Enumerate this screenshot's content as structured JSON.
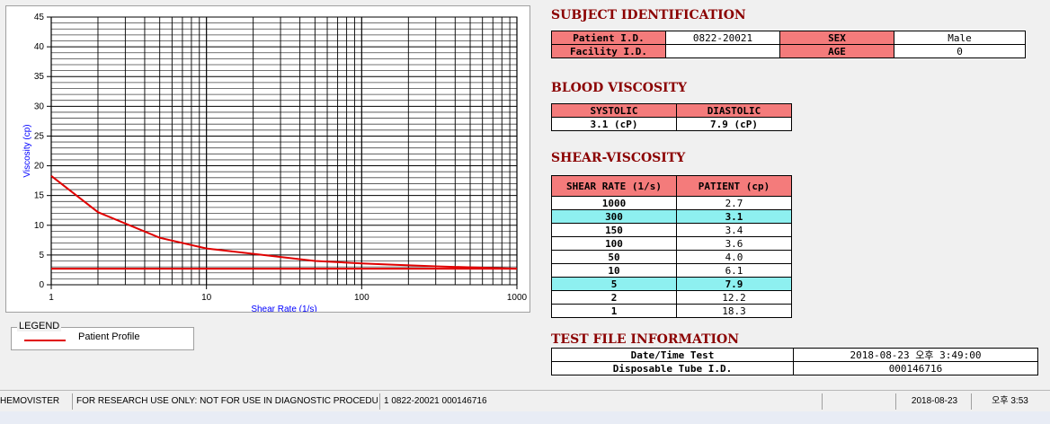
{
  "chart_data": {
    "type": "line",
    "xlabel": "Shear Rate (1/s)",
    "ylabel": "Viscosity (cp)",
    "xscale": "log",
    "xlim": [
      1,
      1000
    ],
    "ylim": [
      0,
      45
    ],
    "x_tick_labels": [
      "1",
      "10",
      "100",
      "1000"
    ],
    "y_tick_labels": [
      "0",
      "5",
      "10",
      "15",
      "20",
      "25",
      "30",
      "35",
      "40",
      "45"
    ],
    "grid": true,
    "series": [
      {
        "name": "Patient Profile",
        "color": "#e00000",
        "x": [
          1,
          2,
          5,
          10,
          50,
          100,
          150,
          300,
          1000
        ],
        "y": [
          18.3,
          12.2,
          7.9,
          6.1,
          4.0,
          3.6,
          3.4,
          3.1,
          2.7
        ]
      },
      {
        "color": "#e00000",
        "x": [
          1,
          1000
        ],
        "y": [
          2.7,
          2.7
        ]
      }
    ]
  },
  "legend": {
    "title": "LEGEND",
    "items": [
      "Patient Profile"
    ]
  },
  "subject": {
    "title": "SUBJECT IDENTIFICATION",
    "patient_id_label": "Patient I.D.",
    "patient_id": "0822-20021",
    "sex_label": "SEX",
    "sex": "Male",
    "facility_id_label": "Facility I.D.",
    "facility_id": "",
    "age_label": "AGE",
    "age": "0"
  },
  "blood_viscosity": {
    "title": "BLOOD VISCOSITY",
    "systolic_label": "SYSTOLIC",
    "diastolic_label": "DIASTOLIC",
    "systolic": "3.1 (cP)",
    "diastolic": "7.9 (cP)"
  },
  "shear_viscosity": {
    "title": "SHEAR-VISCOSITY",
    "col1": "SHEAR RATE (1/s)",
    "col2": "PATIENT (cp)",
    "rows": [
      {
        "rate": "1000",
        "value": "2.7"
      },
      {
        "rate": "300",
        "value": "3.1"
      },
      {
        "rate": "150",
        "value": "3.4"
      },
      {
        "rate": "100",
        "value": "3.6"
      },
      {
        "rate": "50",
        "value": "4.0"
      },
      {
        "rate": "10",
        "value": "6.1"
      },
      {
        "rate": "5",
        "value": "7.9"
      },
      {
        "rate": "2",
        "value": "12.2"
      },
      {
        "rate": "1",
        "value": "18.3"
      }
    ]
  },
  "test_file": {
    "title": "TEST FILE INFORMATION",
    "datetime_label": "Date/Time Test",
    "datetime": "2018-08-23  오후 3:49:00",
    "tube_label": "Disposable Tube I.D.",
    "tube": "000146716"
  },
  "status_bar": {
    "app": "HEMOVISTER",
    "notice": "FOR RESEARCH USE ONLY: NOT FOR USE IN DIAGNOSTIC PROCEDURES",
    "record": "1  0822-20021  000146716",
    "empty": "",
    "date": "2018-08-23",
    "time": "오후 3:53"
  }
}
